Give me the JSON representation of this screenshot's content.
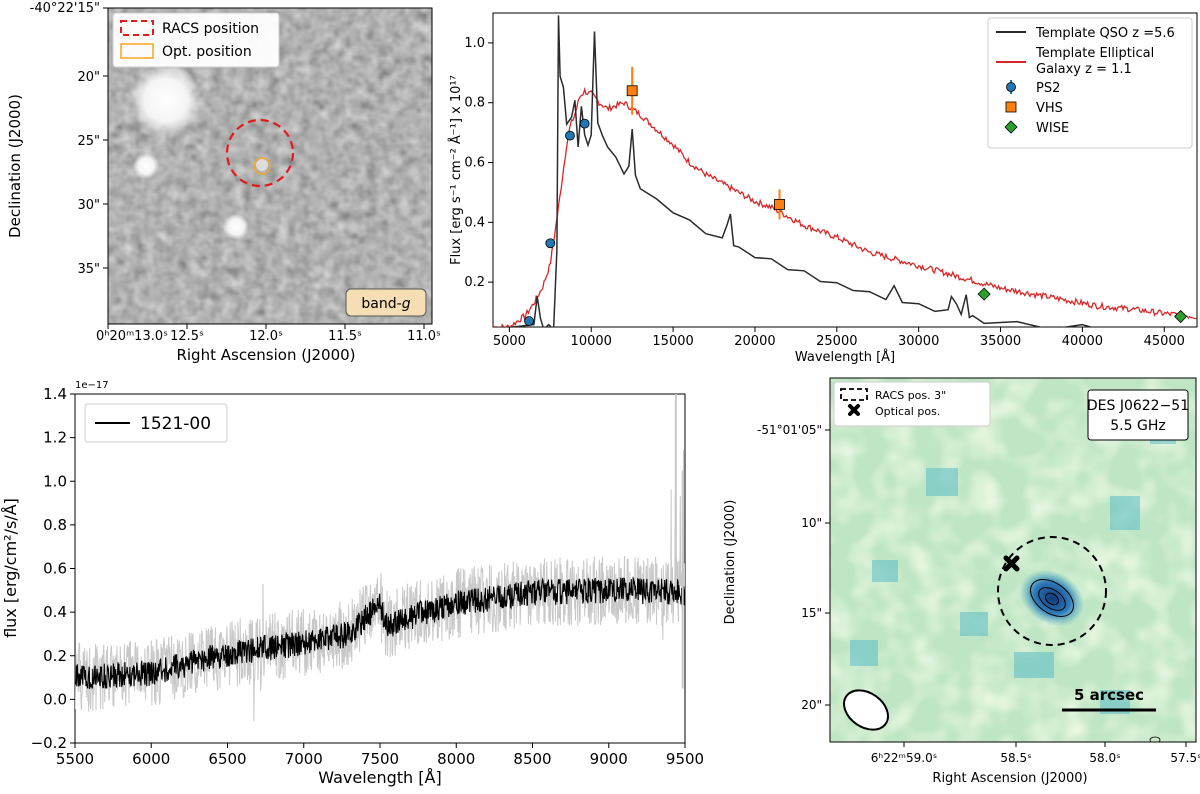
{
  "figure": {
    "panels": [
      "optical-image",
      "sed",
      "spectrum",
      "radio-image"
    ]
  },
  "chart_data": [
    {
      "type": "image",
      "name": "optical-image",
      "xlabel": "Right Ascension (J2000)",
      "ylabel": "Declination (J2000)",
      "xticks": [
        "0ʰ20ᵐ13.0ˢ",
        "12.5ˢ",
        "12.0ˢ",
        "11.5ˢ",
        "11.0ˢ"
      ],
      "yticks": [
        "-40°22'15\"",
        "20\"",
        "25\"",
        "30\"",
        "35\""
      ],
      "legend": [
        "RACS position",
        "Opt. position"
      ],
      "band_label_prefix": "band-",
      "band_label_italic": "g",
      "colors": {
        "racs": "#e31a1c",
        "optical": "#f5a623",
        "band_box": "#f5deb3"
      }
    },
    {
      "type": "line",
      "name": "sed",
      "xlabel": "Wavelength [Å]",
      "ylabel": "Flux [erg s⁻¹ cm⁻² Å⁻¹] x 10¹⁷",
      "xlim": [
        4000,
        47000
      ],
      "ylim": [
        0.05,
        1.1
      ],
      "xticks": [
        5000,
        10000,
        15000,
        20000,
        25000,
        30000,
        35000,
        40000,
        45000
      ],
      "yticks": [
        0.2,
        0.4,
        0.6,
        0.8,
        1.0
      ],
      "series": [
        {
          "name": "Template QSO z =5.6",
          "color": "#2b2b2b",
          "x": [
            4000,
            6500,
            6700,
            6900,
            7100,
            7400,
            7700,
            7900,
            8000,
            8100,
            8300,
            8500,
            8800,
            9000,
            9200,
            9400,
            9600,
            9800,
            10000,
            10200,
            10400,
            10700,
            11000,
            11500,
            12000,
            12300,
            12500,
            12700,
            13000,
            14000,
            15000,
            16000,
            17000,
            18000,
            18300,
            18500,
            18700,
            19000,
            20000,
            21000,
            22000,
            23000,
            24000,
            25000,
            26000,
            27000,
            28000,
            28500,
            29000,
            30000,
            31000,
            31800,
            32000,
            32300,
            32600,
            32900,
            33100,
            33300,
            34000,
            36000,
            38000,
            40000,
            41000
          ],
          "values": [
            0.05,
            0.05,
            0.16,
            0.07,
            0.05,
            0.05,
            0.05,
            0.3,
            1.1,
            0.88,
            0.86,
            0.72,
            0.76,
            0.8,
            0.66,
            0.78,
            0.7,
            0.65,
            0.7,
            1.03,
            0.74,
            0.68,
            0.66,
            0.61,
            0.57,
            0.58,
            0.72,
            0.55,
            0.52,
            0.47,
            0.44,
            0.4,
            0.37,
            0.34,
            0.4,
            0.42,
            0.33,
            0.31,
            0.29,
            0.27,
            0.25,
            0.23,
            0.21,
            0.19,
            0.18,
            0.16,
            0.15,
            0.18,
            0.14,
            0.12,
            0.11,
            0.1,
            0.16,
            0.12,
            0.1,
            0.15,
            0.09,
            0.08,
            0.07,
            0.06,
            0.05,
            0.05,
            0.05
          ]
        },
        {
          "name": "Template Elliptical Galaxy z = 1.1",
          "color": "#d62728",
          "x": [
            4000,
            5000,
            6000,
            6500,
            7000,
            7500,
            8000,
            8500,
            8700,
            9000,
            9300,
            9600,
            9800,
            10000,
            10500,
            11000,
            11500,
            12000,
            12500,
            13000,
            14000,
            15000,
            16000,
            17000,
            18000,
            19000,
            20000,
            21000,
            22000,
            23000,
            24000,
            25000,
            27000,
            29000,
            31000,
            33000,
            35000,
            37000,
            39000,
            41000,
            43000,
            45000,
            47000
          ],
          "values": [
            0.05,
            0.05,
            0.09,
            0.13,
            0.18,
            0.26,
            0.45,
            0.66,
            0.72,
            0.76,
            0.82,
            0.84,
            0.83,
            0.83,
            0.8,
            0.78,
            0.79,
            0.8,
            0.78,
            0.76,
            0.71,
            0.66,
            0.6,
            0.56,
            0.53,
            0.5,
            0.47,
            0.45,
            0.42,
            0.39,
            0.37,
            0.35,
            0.3,
            0.27,
            0.24,
            0.21,
            0.18,
            0.16,
            0.14,
            0.12,
            0.11,
            0.095,
            0.085
          ]
        }
      ],
      "points": [
        {
          "name": "PS2",
          "marker": "circle",
          "color": "#1f77b4",
          "x": [
            6200,
            7500,
            8700,
            9600
          ],
          "values": [
            0.07,
            0.33,
            0.69,
            0.73
          ]
        },
        {
          "name": "VHS",
          "marker": "square",
          "color": "#ff7f0e",
          "x": [
            12500,
            21500
          ],
          "values": [
            0.84,
            0.46
          ],
          "yerr": [
            0.08,
            0.05
          ]
        },
        {
          "name": "WISE",
          "marker": "diamond",
          "color": "#2ca02c",
          "x": [
            34000,
            46000
          ],
          "values": [
            0.16,
            0.085
          ]
        }
      ],
      "legend_lines": [
        "Template QSO z =5.6",
        "Template Elliptical",
        "Galaxy z = 1.1",
        "PS2",
        "VHS",
        "WISE"
      ]
    },
    {
      "type": "line",
      "name": "spectrum",
      "xlabel": "Wavelength [Å]",
      "ylabel": "flux [erg/cm²/s/Å]",
      "offset_text": "1e−17",
      "xlim": [
        5500,
        9500
      ],
      "ylim": [
        -0.2,
        1.4
      ],
      "xticks": [
        5500,
        6000,
        6500,
        7000,
        7500,
        8000,
        8500,
        9000,
        9500
      ],
      "yticks": [
        "−0.2",
        "0.0",
        "0.2",
        "0.4",
        "0.6",
        "0.8",
        "1.0",
        "1.2",
        "1.4"
      ],
      "series": [
        {
          "name": "1521-00",
          "color": "#000000",
          "x": [
            5500,
            6000,
            6500,
            7000,
            7300,
            7500,
            7550,
            7700,
            8000,
            8500,
            9000,
            9500
          ],
          "values": [
            0.1,
            0.12,
            0.21,
            0.26,
            0.3,
            0.44,
            0.33,
            0.38,
            0.44,
            0.49,
            0.5,
            0.49
          ],
          "noise": 0.06
        },
        {
          "name": "error envelope",
          "color": "#c8c8c8",
          "noise": 0.16
        }
      ],
      "legend": [
        "1521-00"
      ]
    },
    {
      "type": "heatmap",
      "name": "radio-image",
      "xlabel": "Right Ascension (J2000)",
      "ylabel": "Declination (J2000)",
      "xticks": [
        "6ʰ22ᵐ59.0ˢ",
        "58.5ˢ",
        "58.0ˢ",
        "57.5ˢ"
      ],
      "yticks": [
        "-51°01'05\"",
        "10\"",
        "15\"",
        "20\""
      ],
      "legend": [
        "RACS pos. 3\"",
        "Optical pos."
      ],
      "title_lines": [
        "DES J0622−51",
        "5.5 GHz"
      ],
      "scalebar_label": "5 arcsec",
      "colors": {
        "low": "#d6f0c6",
        "mid": "#8fd1b8",
        "high": "#3aa6c4"
      }
    }
  ]
}
